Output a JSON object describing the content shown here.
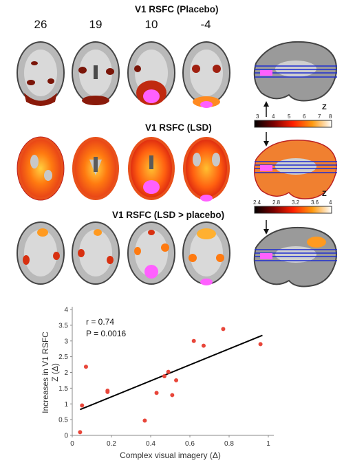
{
  "rows": [
    {
      "title": "V1 RSFC (Placebo)",
      "colorbar": {
        "labels": [
          "3",
          "4",
          "5",
          "6",
          "7",
          "8"
        ],
        "z": "Z"
      }
    },
    {
      "title": "V1 RSFC (LSD)",
      "colorbar": {
        "labels": [
          "2.4",
          "2.8",
          "3.2",
          "3.6",
          "4"
        ],
        "z": "Z"
      }
    },
    {
      "title": "V1 RSFC (LSD > placebo)"
    }
  ],
  "slice_labels": [
    "26",
    "19",
    "10",
    "-4"
  ],
  "chart_data": {
    "type": "scatter",
    "xlabel": "Complex visual imagery (Δ)",
    "ylabel": "Increases in V1 RSFC Z (Δ)",
    "ylabel_lines": [
      "Increases in V1 RSFC",
      "Z (Δ)"
    ],
    "xlim": [
      0,
      1.0
    ],
    "ylim": [
      0,
      4
    ],
    "xticks": [
      "0",
      "0.2",
      "0.4",
      "0.6",
      "0.8",
      "1"
    ],
    "yticks": [
      "0",
      "0.5",
      "1",
      "1.5",
      "2",
      "2.5",
      "3",
      "3.5",
      "4"
    ],
    "annotations": [
      "r = 0.74",
      "P = 0.0016"
    ],
    "points": [
      {
        "x": 0.04,
        "y": 0.1
      },
      {
        "x": 0.05,
        "y": 0.95
      },
      {
        "x": 0.07,
        "y": 2.18
      },
      {
        "x": 0.18,
        "y": 1.38
      },
      {
        "x": 0.18,
        "y": 1.42
      },
      {
        "x": 0.37,
        "y": 0.47
      },
      {
        "x": 0.43,
        "y": 1.35
      },
      {
        "x": 0.47,
        "y": 1.88
      },
      {
        "x": 0.49,
        "y": 2.02
      },
      {
        "x": 0.51,
        "y": 1.28
      },
      {
        "x": 0.53,
        "y": 1.75
      },
      {
        "x": 0.62,
        "y": 3.0
      },
      {
        "x": 0.67,
        "y": 2.85
      },
      {
        "x": 0.77,
        "y": 3.38
      },
      {
        "x": 0.96,
        "y": 2.9
      }
    ],
    "fit_line": {
      "x": [
        0.04,
        0.97
      ],
      "y": [
        0.82,
        3.18
      ]
    },
    "colors": {
      "points": "#e8463a",
      "line": "#000000"
    }
  },
  "colors": {
    "seed": "#ff40ff",
    "hot": "#ff5a10"
  }
}
